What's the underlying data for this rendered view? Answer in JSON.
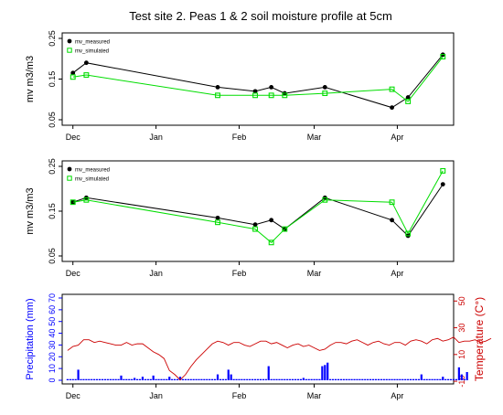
{
  "title": "Test site 2. Peas 1 & 2 soil moisture profile at 5cm",
  "colors": {
    "measured": "#000000",
    "simulated": "#00dd00",
    "precip": "#0000ff",
    "temp": "#cc0000",
    "axis": "#000000"
  },
  "chart_data": [
    {
      "type": "line",
      "panel": "top",
      "ylabel": "mv m3/m3",
      "ylim": [
        0.05,
        0.25
      ],
      "yticks": [
        "0.05",
        "0.15",
        "0.25"
      ],
      "xlim": [
        "2012-11-27",
        "2013-04-22"
      ],
      "xticks": [
        {
          "label": "Dec",
          "date": "2012-12-01"
        },
        {
          "label": "Jan",
          "date": "2013-01-01"
        },
        {
          "label": "Feb",
          "date": "2013-02-01"
        },
        {
          "label": "Mar",
          "date": "2013-03-01"
        },
        {
          "label": "Apr",
          "date": "2013-04-01"
        }
      ],
      "legend": {
        "position": "top-left",
        "entries": [
          "mv_measured",
          "mv_simulated"
        ]
      },
      "series": [
        {
          "name": "mv_measured",
          "marker": "circle",
          "x": [
            "2012-12-01",
            "2012-12-06",
            "2013-01-24",
            "2013-02-07",
            "2013-02-13",
            "2013-02-18",
            "2013-03-05",
            "2013-03-30",
            "2013-04-05",
            "2013-04-18"
          ],
          "y": [
            0.165,
            0.19,
            0.13,
            0.12,
            0.13,
            0.115,
            0.13,
            0.08,
            0.105,
            0.21
          ]
        },
        {
          "name": "mv_simulated",
          "marker": "square",
          "x": [
            "2012-12-01",
            "2012-12-06",
            "2013-01-24",
            "2013-02-07",
            "2013-02-13",
            "2013-02-18",
            "2013-03-05",
            "2013-03-30",
            "2013-04-05",
            "2013-04-18"
          ],
          "y": [
            0.155,
            0.16,
            0.11,
            0.11,
            0.11,
            0.11,
            0.115,
            0.125,
            0.095,
            0.205
          ]
        }
      ]
    },
    {
      "type": "line",
      "panel": "middle",
      "ylabel": "mv m3/m3",
      "ylim": [
        0.05,
        0.25
      ],
      "yticks": [
        "0.05",
        "0.15",
        "0.25"
      ],
      "xlim": [
        "2012-11-27",
        "2013-04-22"
      ],
      "xticks": [
        {
          "label": "Dec",
          "date": "2012-12-01"
        },
        {
          "label": "Jan",
          "date": "2013-01-01"
        },
        {
          "label": "Feb",
          "date": "2013-02-01"
        },
        {
          "label": "Mar",
          "date": "2013-03-01"
        },
        {
          "label": "Apr",
          "date": "2013-04-01"
        }
      ],
      "legend": {
        "position": "top-left",
        "entries": [
          "mv_measured",
          "mv_simulated"
        ]
      },
      "series": [
        {
          "name": "mv_measured",
          "marker": "circle",
          "x": [
            "2012-12-01",
            "2012-12-06",
            "2013-01-24",
            "2013-02-07",
            "2013-02-13",
            "2013-02-18",
            "2013-03-05",
            "2013-03-30",
            "2013-04-05",
            "2013-04-18"
          ],
          "y": [
            0.17,
            0.18,
            0.135,
            0.12,
            0.13,
            0.11,
            0.18,
            0.13,
            0.095,
            0.21
          ]
        },
        {
          "name": "mv_simulated",
          "marker": "square",
          "x": [
            "2012-12-01",
            "2012-12-06",
            "2013-01-24",
            "2013-02-07",
            "2013-02-13",
            "2013-02-18",
            "2013-03-05",
            "2013-03-30",
            "2013-04-05",
            "2013-04-18"
          ],
          "y": [
            0.17,
            0.175,
            0.125,
            0.11,
            0.08,
            0.11,
            0.175,
            0.17,
            0.1,
            0.24
          ]
        }
      ]
    },
    {
      "type": "bar+line",
      "panel": "bottom",
      "ylabel": "Precipitation (mm)",
      "y2label": "Temperature (C°)",
      "ylim": [
        0,
        70
      ],
      "yticks": [
        "0",
        "10",
        "20",
        "30",
        "40",
        "50",
        "60",
        "70"
      ],
      "y2lim": [
        -12,
        55
      ],
      "y2ticks": [
        "-10",
        "10",
        "30",
        "50"
      ],
      "xlim": [
        "2012-11-27",
        "2013-04-22"
      ],
      "xticks": [
        {
          "label": "Dec",
          "date": "2012-12-01"
        },
        {
          "label": "Jan",
          "date": "2013-01-01"
        },
        {
          "label": "Feb",
          "date": "2013-02-01"
        },
        {
          "label": "Mar",
          "date": "2013-03-01"
        },
        {
          "label": "Apr",
          "date": "2013-04-01"
        }
      ],
      "precipitation": {
        "start": "2012-11-29",
        "step_days": 1,
        "values": [
          1,
          1,
          1,
          1,
          9,
          1,
          1,
          1,
          1,
          1,
          1,
          1,
          1,
          1,
          1,
          1,
          1,
          1,
          1,
          1,
          4,
          1,
          1,
          1,
          1,
          2,
          1,
          1,
          3,
          1,
          1,
          1,
          4,
          1,
          1,
          1,
          1,
          1,
          3,
          1,
          1,
          1,
          3,
          1,
          1,
          1,
          1,
          1,
          1,
          1,
          1,
          1,
          1,
          1,
          1,
          1,
          5,
          1,
          1,
          1,
          9,
          5,
          1,
          1,
          1,
          1,
          1,
          1,
          1,
          1,
          1,
          1,
          1,
          1,
          1,
          12,
          1,
          1,
          1,
          1,
          1,
          1,
          1,
          1,
          1,
          1,
          1,
          1,
          2,
          1,
          1,
          1,
          1,
          1,
          1,
          12,
          13,
          15,
          1,
          1,
          1,
          1,
          1,
          1,
          1,
          1,
          1,
          1,
          1,
          1,
          1,
          1,
          1,
          1,
          1,
          1,
          1,
          1,
          1,
          1,
          1,
          1,
          1,
          1,
          1,
          1,
          1,
          1,
          1,
          1,
          1,
          1,
          5,
          1,
          1,
          1,
          1,
          1,
          1,
          1,
          3,
          1,
          1,
          1,
          1,
          1,
          11,
          5,
          1,
          7
        ]
      },
      "temperature": {
        "start": "2012-11-29",
        "step_days": 2,
        "values": [
          13,
          16,
          17,
          21,
          21,
          19,
          20,
          19,
          18,
          17,
          17,
          19,
          17,
          18,
          18,
          15,
          12,
          10,
          7,
          -2,
          -5,
          -9,
          -5,
          1,
          6,
          10,
          14,
          18,
          20,
          19,
          17,
          19,
          19,
          17,
          16,
          18,
          20,
          20,
          18,
          19,
          17,
          15,
          17,
          18,
          16,
          17,
          15,
          13,
          14,
          17,
          19,
          19,
          18,
          20,
          21,
          19,
          17,
          19,
          20,
          18,
          17,
          19,
          19,
          17,
          20,
          21,
          20,
          18,
          21,
          22,
          20,
          21,
          23,
          19,
          20,
          20,
          21,
          19,
          20,
          22
        ]
      }
    }
  ]
}
